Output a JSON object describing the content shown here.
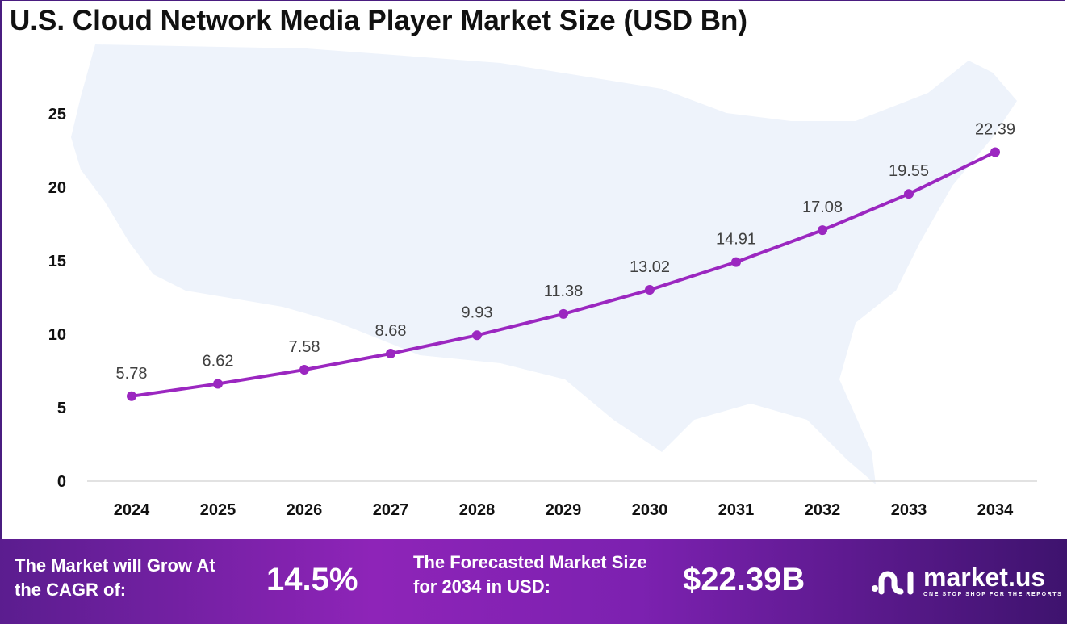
{
  "chart_data": {
    "type": "line",
    "title": "U.S. Cloud Network Media Player Market Size (USD Bn)",
    "categories": [
      "2024",
      "2025",
      "2026",
      "2027",
      "2028",
      "2029",
      "2030",
      "2031",
      "2032",
      "2033",
      "2034"
    ],
    "values": [
      5.78,
      6.62,
      7.58,
      8.68,
      9.93,
      11.38,
      13.02,
      14.91,
      17.08,
      19.55,
      22.39
    ],
    "data_labels": [
      "5.78",
      "6.62",
      "7.58",
      "8.68",
      "9.93",
      "11.38",
      "13.02",
      "14.91",
      "17.08",
      "19.55",
      "22.39"
    ],
    "yticks": [
      "0",
      "5",
      "10",
      "15",
      "20",
      "25"
    ],
    "ylim": [
      0,
      25
    ],
    "xlabel": "",
    "ylabel": "",
    "grid": false,
    "line_color": "#9b27c0"
  },
  "banner": {
    "cagr_label": "The Market will Grow At the CAGR of:",
    "cagr_value": "14.5%",
    "forecast_label": "The Forecasted Market Size for 2034 in USD:",
    "forecast_value": "$22.39B",
    "logo_name": "market.us",
    "logo_tagline": "ONE STOP SHOP FOR THE REPORTS"
  }
}
